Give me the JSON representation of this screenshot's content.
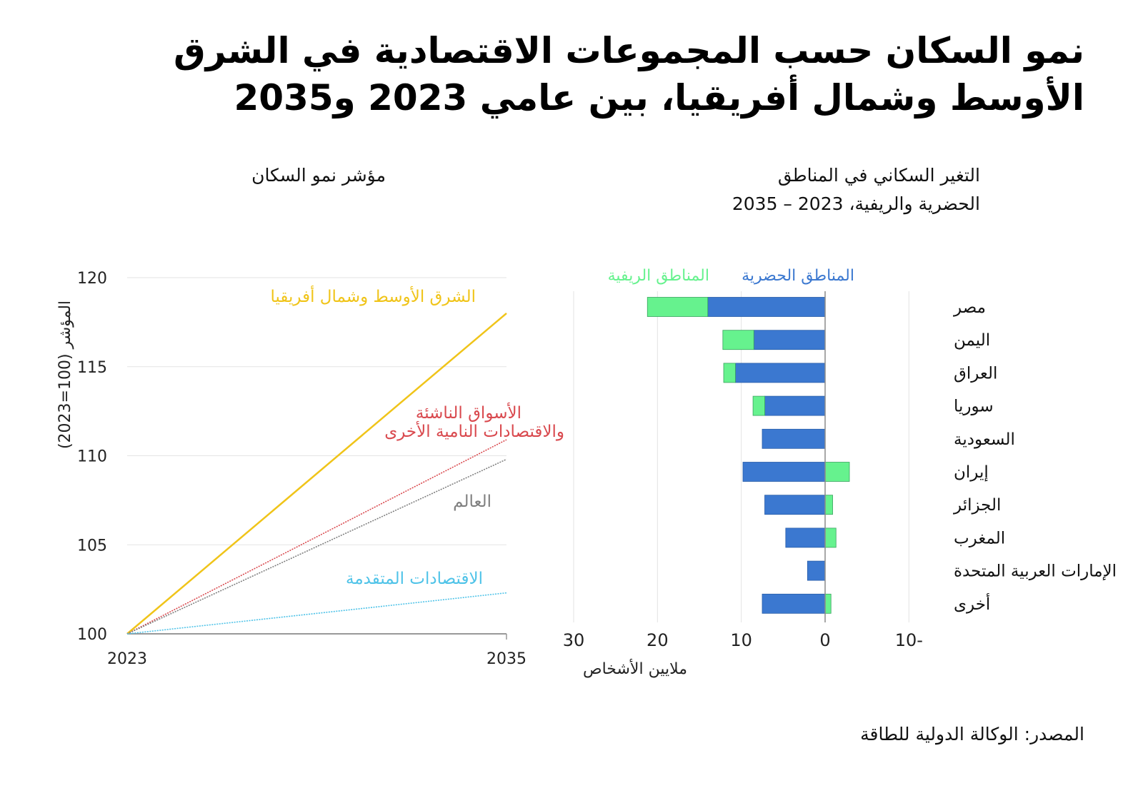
{
  "title": "نمو السكان حسب المجموعات الاقتصادية في الشرق الأوسط وشمال أفريقيا، بين عامي 2023 و2035",
  "source": "المصدر: الوكالة الدولية للطاقة",
  "colors": {
    "mena": "#F0C419",
    "emde": "#D9494E",
    "world": "#7F7F7F",
    "advanced": "#4FC3E8",
    "urban": "#3B78D0",
    "rural": "#66F28E",
    "grid": "#E3E3E3",
    "axis": "#888888"
  },
  "chart_data": [
    {
      "type": "line",
      "title": "مؤشر نمو السكان",
      "xlabel": "",
      "ylabel": "المؤشر (100=2023)",
      "x": [
        2023,
        2035
      ],
      "x_tick_labels": [
        "2023",
        "2035"
      ],
      "ylim": [
        100,
        120
      ],
      "y_ticks": [
        100,
        105,
        110,
        115,
        120
      ],
      "grid": true,
      "series": [
        {
          "key": "mena",
          "name": "الشرق الأوسط وشمال أفريقيا",
          "values": [
            100,
            118.0
          ],
          "style": "solid"
        },
        {
          "key": "emde",
          "name": "الأسواق الناشئة والاقتصادات النامية الأخرى",
          "name_lines": [
            "الأسواق الناشئة",
            "والاقتصادات النامية الأخرى"
          ],
          "values": [
            100,
            110.9
          ],
          "style": "dotted"
        },
        {
          "key": "world",
          "name": "العالم",
          "values": [
            100,
            109.8
          ],
          "style": "dotted"
        },
        {
          "key": "advanced",
          "name": "الاقتصادات المتقدمة",
          "values": [
            100,
            102.3
          ],
          "style": "dotted"
        }
      ]
    },
    {
      "type": "bar",
      "orientation": "horizontal-stacked",
      "title": "التغير السكاني في المناطق الحضرية والريفية، 2023 – 2035",
      "title_lines": [
        "التغير السكاني في المناطق",
        "الحضرية والريفية، 2023 – 2035"
      ],
      "xlabel": "ملايين الأشخاص",
      "xlim": [
        30,
        -10
      ],
      "x_ticks": [
        30,
        20,
        10,
        0,
        -10
      ],
      "x_tick_labels": [
        "30",
        "20",
        "10",
        "0",
        "10-"
      ],
      "grid": true,
      "legend": {
        "placement": "top",
        "entries": [
          {
            "key": "urban",
            "label": "المناطق الحضرية"
          },
          {
            "key": "rural",
            "label": "المناطق الريفية"
          }
        ]
      },
      "categories": [
        "مصر",
        "اليمن",
        "العراق",
        "سوريا",
        "السعودية",
        "إيران",
        "الجزائر",
        "المغرب",
        "الإمارات العربية المتحدة",
        "أخرى"
      ],
      "series": [
        {
          "key": "urban",
          "name": "المناطق الحضرية",
          "values": [
            14.0,
            8.5,
            10.7,
            7.2,
            7.5,
            9.8,
            7.2,
            4.7,
            2.1,
            7.5
          ]
        },
        {
          "key": "rural",
          "name": "المناطق الريفية",
          "values": [
            7.2,
            3.7,
            1.4,
            1.4,
            0,
            -2.9,
            -0.9,
            -1.3,
            0,
            -0.7
          ]
        }
      ]
    }
  ]
}
